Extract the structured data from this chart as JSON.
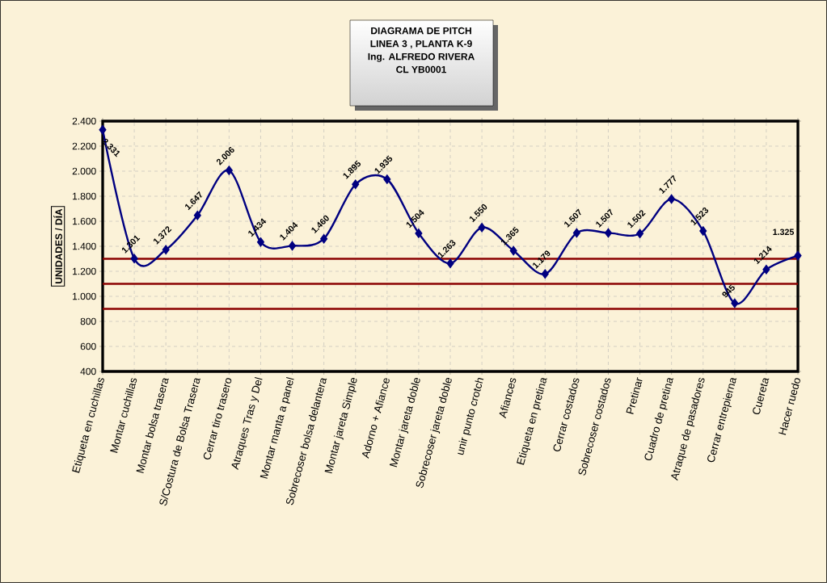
{
  "chart_data": {
    "type": "line",
    "title": "DIAGRAMA DE PITCH",
    "subtitle": "LINEA 3 , PLANTA K-9",
    "annotations": [
      "Ing. ALFREDO RIVERA",
      "CL YB0001"
    ],
    "ylabel": "UNIDADES /  DÍA",
    "categories": [
      "Etiqueta en cuchillas",
      "Montar cuchillas",
      "Montar bolsa trasera",
      "S/Costura de Bolsa Trasera",
      "Cerrar tiro trasero",
      "Atraques  Tras y Del",
      "Montar manta a panel",
      "Sobrecoser bolsa delantera",
      "Montar jareta Simple",
      "Adorno + Afiance",
      "Montar jareta doble",
      "Sobrecoser jareta doble",
      "unir punto crotch",
      "Afiances",
      "Etiqueta en pretina",
      "Cerrar costados",
      "Sobrecoser costados",
      "Pretinar",
      "Cuadro de pretina",
      "Atraque de pasadores",
      "Cerrar entrepierna",
      "Cuereta",
      "Hacer ruedo"
    ],
    "values": [
      2331,
      1301,
      1372,
      1647,
      2006,
      1434,
      1404,
      1460,
      1895,
      1935,
      1504,
      1263,
      1550,
      1365,
      1179,
      1507,
      1507,
      1502,
      1777,
      1523,
      945,
      1214,
      1325
    ],
    "value_labels": [
      "2.331",
      "1.301",
      "1.372",
      "1.647",
      "2.006",
      "1.434",
      "1.404",
      "1.460",
      "1.895",
      "1.935",
      "1.504",
      "1.263",
      "1.550",
      "1.365",
      "1.179",
      "1.507",
      "1.507",
      "1.502",
      "1.777",
      "1.523",
      "945",
      "1.214",
      "1.325"
    ],
    "color": "#000080",
    "marker": "diamond",
    "grid": true,
    "ylim": [
      400,
      2400
    ],
    "yticks": [
      {
        "value": 400,
        "label": "400"
      },
      {
        "value": 600,
        "label": "600"
      },
      {
        "value": 800,
        "label": "800"
      },
      {
        "value": 1000,
        "label": "1.000"
      },
      {
        "value": 1200,
        "label": "1.200"
      },
      {
        "value": 1400,
        "label": "1.400"
      },
      {
        "value": 1600,
        "label": "1.600"
      },
      {
        "value": 1800,
        "label": "1.800"
      },
      {
        "value": 2000,
        "label": "2.000"
      },
      {
        "value": 2200,
        "label": "2.200"
      },
      {
        "value": 2400,
        "label": "2.400"
      }
    ],
    "ref_lines": [
      {
        "axis": "y",
        "value": 1300,
        "color": "#8b0000"
      },
      {
        "axis": "y",
        "value": 1100,
        "color": "#8b0000"
      },
      {
        "axis": "y",
        "value": 900,
        "color": "#8b0000"
      }
    ]
  }
}
